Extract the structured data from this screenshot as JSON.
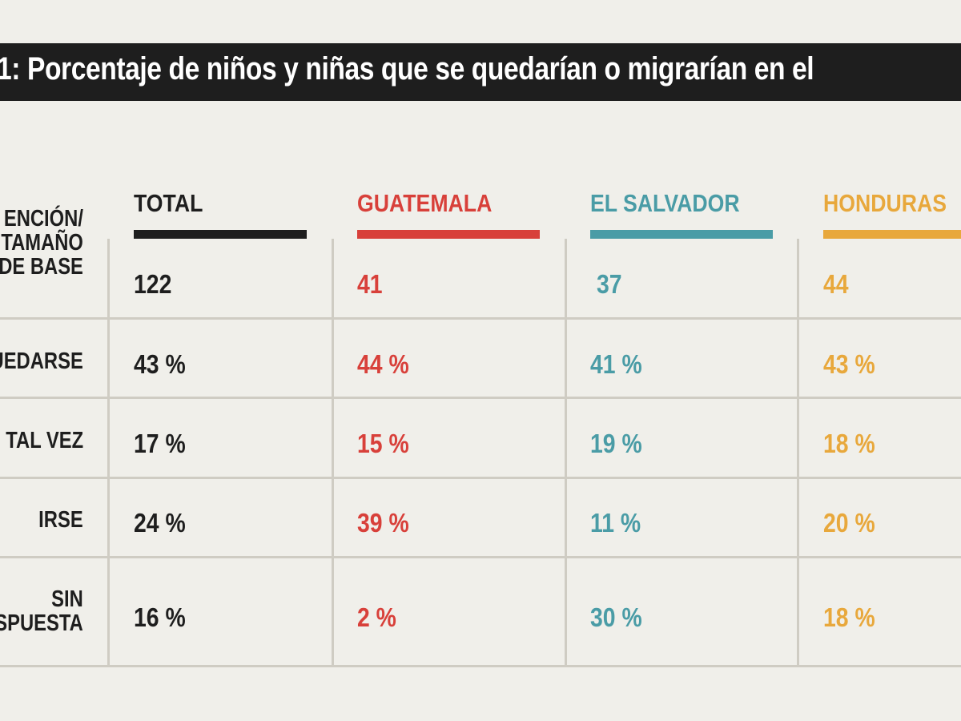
{
  "colors": {
    "background": "#f0efea",
    "title_bar": "#1e1e1e",
    "total": "#1e1e1e",
    "guatemala": "#d8403a",
    "el_salvador": "#4a9ca6",
    "honduras": "#e8a83c",
    "grid": "#cfccc3"
  },
  "chart_data": {
    "type": "table",
    "title": "1: Porcentaje de niños y niñas que se quedarían o migrarían en el",
    "columns": [
      {
        "key": "total",
        "label": "TOTAL",
        "color": "#1e1e1e"
      },
      {
        "key": "guatemala",
        "label": "GUATEMALA",
        "color": "#d8403a"
      },
      {
        "key": "el_salvador",
        "label": "EL SALVADOR",
        "color": "#4a9ca6"
      },
      {
        "key": "honduras",
        "label": "HONDURAS",
        "color": "#e8a83c"
      }
    ],
    "rows": [
      {
        "label": "ENCIÓN/\nTAMAÑO\nDE BASE",
        "values": [
          "122",
          "41",
          "37",
          "44"
        ]
      },
      {
        "label": "UEDARSE",
        "values": [
          "43 %",
          "44 %",
          "41 %",
          "43 %"
        ]
      },
      {
        "label": "TAL VEZ",
        "values": [
          "17 %",
          "15 %",
          "19 %",
          "18 %"
        ]
      },
      {
        "label": "IRSE",
        "values": [
          "24 %",
          "39 %",
          "11 %",
          "20 %"
        ]
      },
      {
        "label": "SIN\nSPUESTA",
        "values": [
          "16 %",
          "2 %",
          "30 %",
          "18 %"
        ]
      }
    ]
  }
}
